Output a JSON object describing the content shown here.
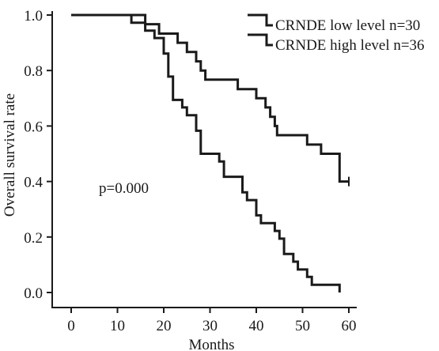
{
  "chart_data": {
    "type": "line",
    "step": true,
    "xlabel": "Months",
    "ylabel": "Overall survival rate",
    "xlim": [
      0,
      60
    ],
    "ylim": [
      0,
      1
    ],
    "xticks": [
      "0",
      "10",
      "20",
      "30",
      "40",
      "50",
      "60"
    ],
    "yticks": [
      "0.0",
      "0.2",
      "0.4",
      "0.6",
      "0.8",
      "1.0"
    ],
    "grid": false,
    "legend_position": "top-right",
    "annotation": "p=0.000",
    "series": [
      {
        "name": "CRNDE low level n=30",
        "points": [
          [
            0,
            1.0
          ],
          [
            16,
            0.967
          ],
          [
            19,
            0.933
          ],
          [
            23,
            0.9
          ],
          [
            25,
            0.867
          ],
          [
            27,
            0.833
          ],
          [
            28,
            0.8
          ],
          [
            29,
            0.767
          ],
          [
            36,
            0.733
          ],
          [
            40,
            0.7
          ],
          [
            42,
            0.667
          ],
          [
            43,
            0.633
          ],
          [
            44,
            0.6
          ],
          [
            44.5,
            0.567
          ],
          [
            51,
            0.533
          ],
          [
            54,
            0.5
          ],
          [
            58,
            0.4
          ],
          [
            60,
            0.4
          ]
        ],
        "censored": [
          [
            60,
            0.4
          ]
        ]
      },
      {
        "name": "CRNDE high level n=36",
        "points": [
          [
            0,
            1.0
          ],
          [
            13,
            0.972
          ],
          [
            16,
            0.944
          ],
          [
            18,
            0.917
          ],
          [
            20,
            0.861
          ],
          [
            21,
            0.778
          ],
          [
            22,
            0.694
          ],
          [
            24,
            0.667
          ],
          [
            25,
            0.639
          ],
          [
            27,
            0.583
          ],
          [
            28,
            0.5
          ],
          [
            32,
            0.472
          ],
          [
            33,
            0.417
          ],
          [
            37,
            0.361
          ],
          [
            38,
            0.333
          ],
          [
            40,
            0.278
          ],
          [
            41,
            0.25
          ],
          [
            44,
            0.222
          ],
          [
            45,
            0.194
          ],
          [
            46,
            0.139
          ],
          [
            48,
            0.111
          ],
          [
            49,
            0.083
          ],
          [
            51,
            0.056
          ],
          [
            52,
            0.028
          ],
          [
            58,
            0.0
          ]
        ],
        "censored": []
      }
    ]
  }
}
